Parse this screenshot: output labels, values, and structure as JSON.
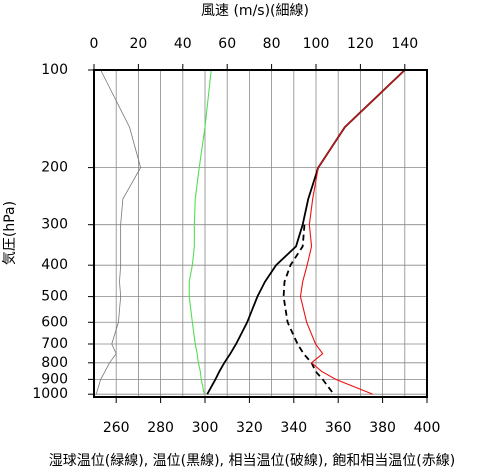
{
  "chart_data": {
    "type": "line",
    "title": "風速 (m/s)(細線)",
    "ylabel": "気圧(hPa)",
    "xlabel": "湿球温位(緑線), 温位(黒線), 相当温位(破線), 飽和相当温位(赤線)",
    "y": [
      100,
      150,
      200,
      250,
      300,
      350,
      400,
      450,
      500,
      600,
      700,
      750,
      800,
      850,
      900,
      1000
    ],
    "ylim": [
      1020,
      100
    ],
    "ylog": true,
    "yticks": [
      100,
      200,
      300,
      400,
      500,
      600,
      700,
      800,
      900,
      1000
    ],
    "xlim": [
      250,
      400
    ],
    "xticks": [
      260,
      280,
      300,
      320,
      340,
      360,
      380,
      400
    ],
    "xminorticks": [
      250,
      270,
      290,
      310,
      330,
      350,
      370,
      390
    ],
    "x2lim": [
      0,
      150
    ],
    "x2ticks": [
      0,
      20,
      40,
      60,
      80,
      100,
      120,
      140
    ],
    "grid": true,
    "series": [
      {
        "color": "#55dd55",
        "values": [
          302.8,
          300,
          297.4,
          295.6,
          295.2,
          295.2,
          294.3,
          292.9,
          292.9,
          294.3,
          295.6,
          296.5,
          297,
          297.9,
          298.3,
          299.7
        ]
      },
      {
        "color": "#000000",
        "values": [
          390,
          363,
          351,
          346.5,
          344,
          341,
          332,
          327,
          323.6,
          319,
          314,
          311.4,
          308.7,
          306.5,
          304.7,
          301
        ]
      },
      {
        "color": "#000000",
        "dashed": true,
        "values": [
          null,
          null,
          null,
          null,
          344.8,
          344,
          338.5,
          335.8,
          335.4,
          337.2,
          341.7,
          344.4,
          348,
          349.8,
          353,
          358
        ]
      },
      {
        "color": "#ee1111",
        "values": [
          390,
          363,
          351,
          348.5,
          347,
          348,
          346,
          344,
          343,
          345.8,
          349.8,
          353,
          348,
          352.5,
          358.9,
          375.6
        ]
      },
      {
        "color": "#777777",
        "axis": "x2",
        "thin": true,
        "values": [
          3,
          16,
          21,
          13,
          12,
          12,
          12,
          11.5,
          12,
          11,
          8,
          10,
          7,
          5,
          3,
          1
        ]
      }
    ]
  }
}
